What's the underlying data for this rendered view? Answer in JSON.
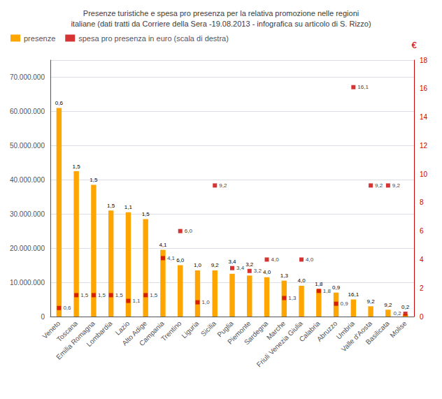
{
  "chart_data": {
    "type": "bar",
    "title": "Presenze turistiche e spesa pro presenza per la relativa promozione nelle regioni\nitaliane (dati tratti da Corriere della Sera -19.08.2013 - infografica su articolo di S. Rizzo)",
    "categories": [
      "Veneto",
      "Toscana",
      "Emilia Romagna",
      "Lombardia",
      "Lazio",
      "Alto Adige",
      "Campania",
      "Trentino",
      "Liguria",
      "Sicilia",
      "Puglia",
      "Piemonte",
      "Sardegna",
      "Marche",
      "Friuli Venezia Giulia",
      "Calabria",
      "Abruzzo",
      "Umbria",
      "Valle d'Aosta",
      "Basilicata",
      "Molise"
    ],
    "series": [
      {
        "name": "presenze",
        "type": "bar",
        "color": "#FFA500",
        "values": [
          61000000,
          42500000,
          38500000,
          31000000,
          30500000,
          28500000,
          19500000,
          15000000,
          13500000,
          13500000,
          12500000,
          12000000,
          11500000,
          10500000,
          9000000,
          8000000,
          7000000,
          5000000,
          3000000,
          2000000,
          700000
        ]
      },
      {
        "name": "spesa pro presenza in euro (scala di destra)",
        "type": "scatter",
        "axis": "y2",
        "color": "#CC0000",
        "marker": "square",
        "values": [
          0.6,
          1.5,
          1.5,
          1.5,
          1.1,
          1.5,
          4.1,
          6.0,
          1.0,
          9.2,
          3.4,
          3.2,
          4.0,
          1.3,
          4.0,
          1.8,
          0.9,
          16.1,
          9.2,
          9.2,
          0.2
        ],
        "value_labels": [
          "0,6",
          "1,5",
          "1,5",
          "1,5",
          "1,1",
          "1,5",
          "4,1",
          "6,0",
          "1,0",
          "9,2",
          "3,4",
          "3,2",
          "4,0",
          "1,3",
          "4,0",
          "1,8",
          "0,9",
          "16,1",
          "9,2",
          "9,2",
          "0,2"
        ]
      }
    ],
    "annotations": [
      {
        "category": "Veneto",
        "text": "0,6"
      },
      {
        "category": "Toscana",
        "text": "1,5"
      },
      {
        "category": "Emilia Romagna",
        "text": "1,5"
      },
      {
        "category": "Lombardia",
        "text": "1,5"
      },
      {
        "category": "Lazio",
        "text": "1,1"
      },
      {
        "category": "Alto Adige",
        "text": "1,5"
      },
      {
        "category": "Campania",
        "text": "4,1"
      },
      {
        "category": "Trentino",
        "text": "6,0"
      },
      {
        "category": "Liguria",
        "text": "1,0"
      },
      {
        "category": "Sicilia",
        "text": "9,2"
      },
      {
        "category": "Puglia",
        "text": "3,4"
      },
      {
        "category": "Piemonte",
        "text": "3,2"
      },
      {
        "category": "Sardegna",
        "text": "4,0"
      },
      {
        "category": "Marche",
        "text": "1,3"
      },
      {
        "category": "Friuli Venezia Giulia",
        "text": "4,0"
      },
      {
        "category": "Calabria",
        "text": "1,8"
      },
      {
        "category": "Abruzzo",
        "text": "0,9"
      },
      {
        "category": "Umbria",
        "text": "16,1"
      },
      {
        "category": "Valle d'Aosta",
        "text": "9,2"
      },
      {
        "category": "Basilicata",
        "text": "9,2"
      },
      {
        "category": "Molise",
        "text": "0,2"
      }
    ],
    "ylim": [
      0,
      75000000
    ],
    "yticks": [
      0,
      {
        "value": 10000000,
        "label": "10.000.000"
      },
      {
        "value": 20000000,
        "label": "20.000.000"
      },
      {
        "value": 30000000,
        "label": "30.000.000"
      },
      {
        "value": 40000000,
        "label": "40.000.000"
      },
      {
        "value": 50000000,
        "label": "50.000.000"
      },
      {
        "value": 60000000,
        "label": "60.000.000"
      },
      {
        "value": 70000000,
        "label": "70.000.000"
      }
    ],
    "y2lim": [
      0,
      18
    ],
    "y2ticks": [
      0,
      2,
      4,
      6,
      8,
      10,
      12,
      14,
      16,
      18
    ],
    "y2label": "€",
    "grid": true,
    "legend": "upper left"
  }
}
